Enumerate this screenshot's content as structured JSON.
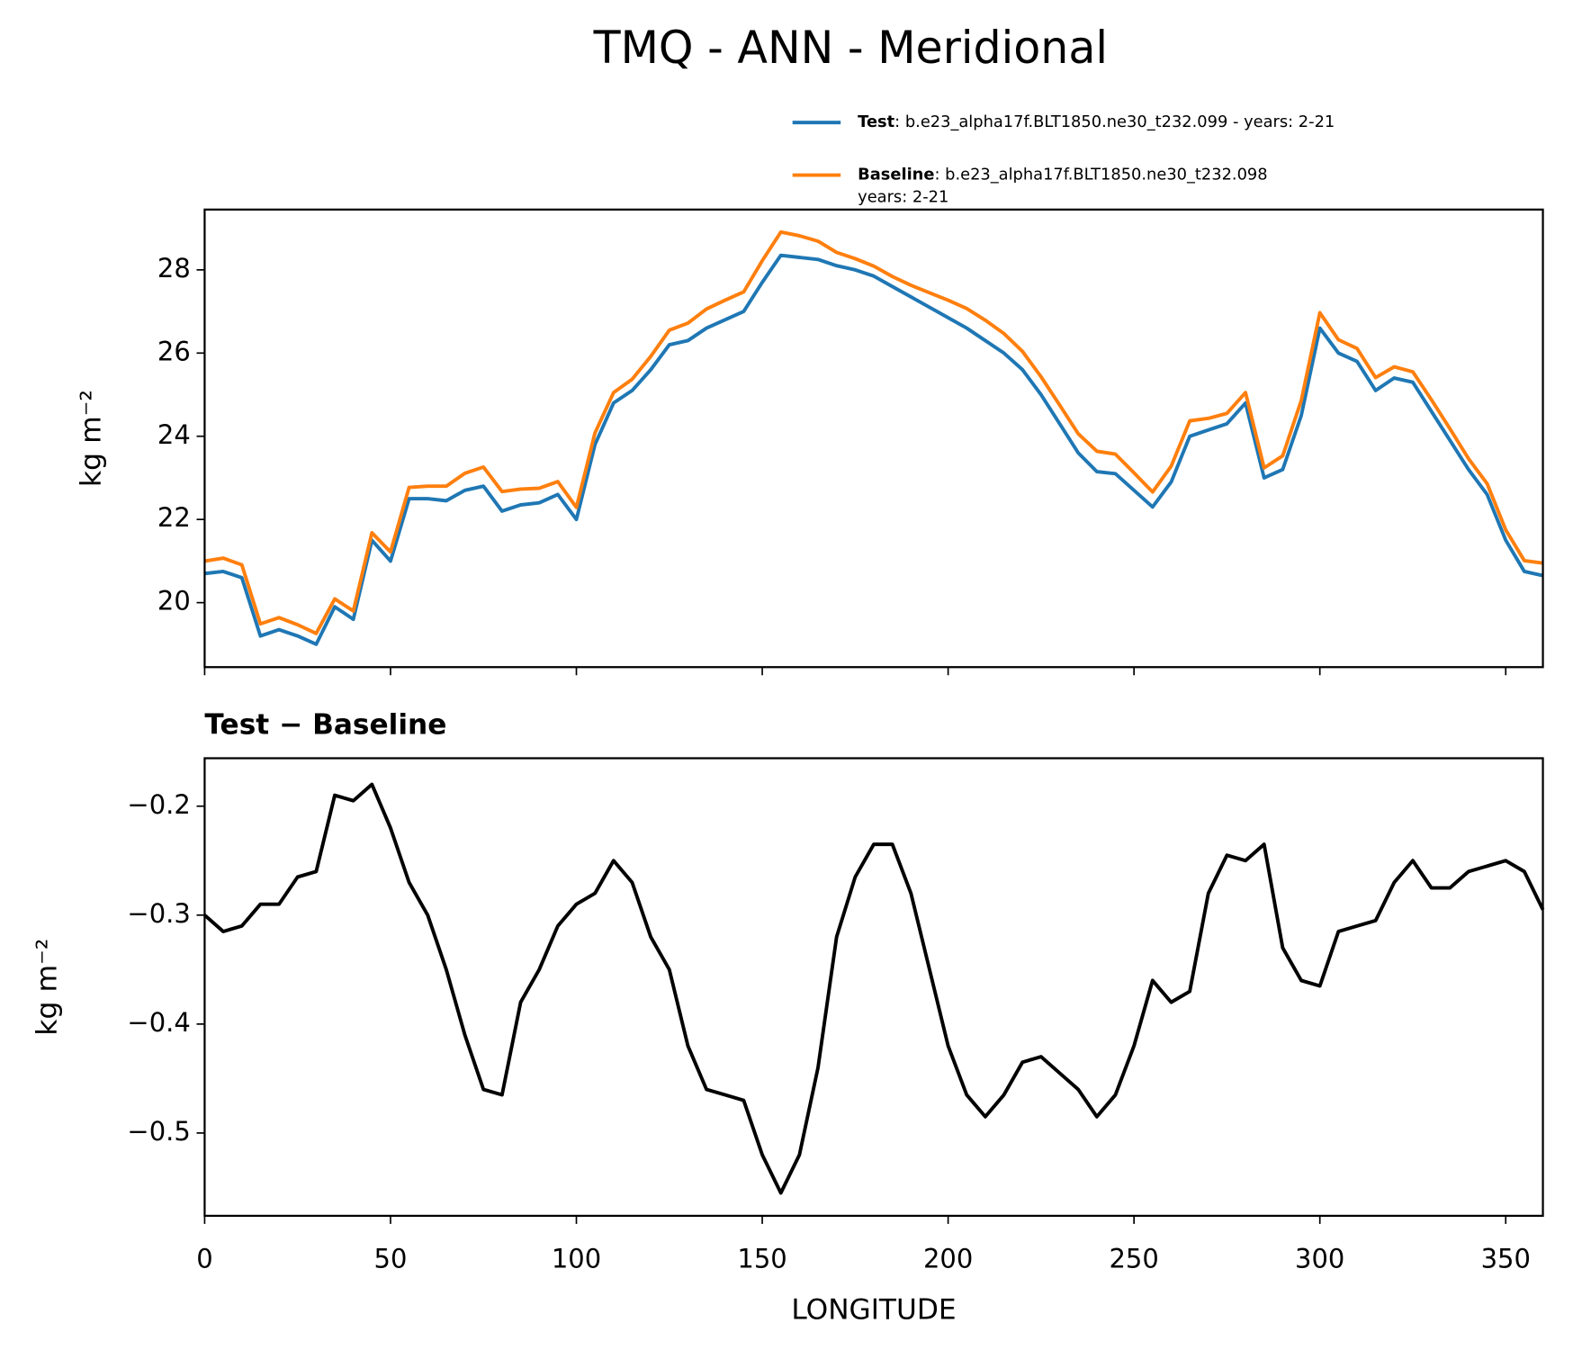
{
  "chart_data": [
    {
      "type": "line",
      "title": "TMQ - ANN - Meridional",
      "ylabel": "kg m⁻²",
      "x": [
        0,
        5,
        10,
        15,
        20,
        25,
        30,
        35,
        40,
        45,
        50,
        55,
        60,
        65,
        70,
        75,
        80,
        85,
        90,
        95,
        100,
        105,
        110,
        115,
        120,
        125,
        130,
        135,
        140,
        145,
        150,
        155,
        160,
        165,
        170,
        175,
        180,
        185,
        190,
        195,
        200,
        205,
        210,
        215,
        220,
        225,
        230,
        235,
        240,
        245,
        250,
        255,
        260,
        265,
        270,
        275,
        280,
        285,
        290,
        295,
        300,
        305,
        310,
        315,
        320,
        325,
        330,
        335,
        340,
        345,
        350,
        355,
        360
      ],
      "series": [
        {
          "name": "Test",
          "description": [
            ": b.e23_alpha17f.BLT1850.ne30_t232.099 - years: 2-21"
          ],
          "color": "#1f77b4",
          "values": [
            20.7,
            20.75,
            20.6,
            19.2,
            19.35,
            19.2,
            19.0,
            19.9,
            19.6,
            21.5,
            21.0,
            22.5,
            22.5,
            22.45,
            22.7,
            22.8,
            22.2,
            22.35,
            22.4,
            22.6,
            22.0,
            23.8,
            24.8,
            25.1,
            25.6,
            26.2,
            26.3,
            26.6,
            26.8,
            27.0,
            27.7,
            28.35,
            28.3,
            28.25,
            28.1,
            28.0,
            27.85,
            27.6,
            27.35,
            27.1,
            26.85,
            26.6,
            26.3,
            26.0,
            25.6,
            25.0,
            24.3,
            23.6,
            23.15,
            23.1,
            22.7,
            22.3,
            22.9,
            24.0,
            24.15,
            24.3,
            24.8,
            23.0,
            23.2,
            24.5,
            26.6,
            26.0,
            25.8,
            25.1,
            25.4,
            25.3,
            24.6,
            23.9,
            23.2,
            22.6,
            21.5,
            20.75,
            20.65
          ]
        },
        {
          "name": "Baseline",
          "description": [
            ": b.e23_alpha17f.BLT1850.ne30_t232.098",
            "years: 2-21"
          ],
          "color": "#ff7f0e",
          "values": [
            21.0,
            21.07,
            20.91,
            19.49,
            19.64,
            19.47,
            19.26,
            20.09,
            19.8,
            21.68,
            21.22,
            22.77,
            22.8,
            22.8,
            23.11,
            23.26,
            22.67,
            22.73,
            22.75,
            22.91,
            22.29,
            24.08,
            25.05,
            25.37,
            25.92,
            26.55,
            26.72,
            27.06,
            27.27,
            27.47,
            28.22,
            28.91,
            28.82,
            28.69,
            28.42,
            28.27,
            28.09,
            27.84,
            27.63,
            27.45,
            27.27,
            27.07,
            26.79,
            26.47,
            26.04,
            25.43,
            24.75,
            24.06,
            23.64,
            23.57,
            23.12,
            22.66,
            23.28,
            24.37,
            24.43,
            24.55,
            25.05,
            23.24,
            23.53,
            24.86,
            26.97,
            26.32,
            26.11,
            25.41,
            25.67,
            25.55,
            24.88,
            24.18,
            23.46,
            22.86,
            21.75,
            21.01,
            20.95
          ]
        }
      ],
      "xlim": [
        0,
        360
      ],
      "xticks": [
        0,
        50,
        100,
        150,
        200,
        250,
        300,
        350
      ],
      "ylim": [
        18.45,
        29.45
      ],
      "yticks": [
        20,
        22,
        24,
        26,
        28
      ]
    },
    {
      "type": "line",
      "subtitle": "Test − Baseline",
      "ylabel": "kg m⁻²",
      "xlabel": "LONGITUDE",
      "x": [
        0,
        5,
        10,
        15,
        20,
        25,
        30,
        35,
        40,
        45,
        50,
        55,
        60,
        65,
        70,
        75,
        80,
        85,
        90,
        95,
        100,
        105,
        110,
        115,
        120,
        125,
        130,
        135,
        140,
        145,
        150,
        155,
        160,
        165,
        170,
        175,
        180,
        185,
        190,
        195,
        200,
        205,
        210,
        215,
        220,
        225,
        230,
        235,
        240,
        245,
        250,
        255,
        260,
        265,
        270,
        275,
        280,
        285,
        290,
        295,
        300,
        305,
        310,
        315,
        320,
        325,
        330,
        335,
        340,
        345,
        350,
        355,
        360
      ],
      "series": [
        {
          "color": "#000000",
          "values": [
            -0.3,
            -0.315,
            -0.31,
            -0.29,
            -0.29,
            -0.265,
            -0.26,
            -0.19,
            -0.195,
            -0.18,
            -0.22,
            -0.27,
            -0.3,
            -0.35,
            -0.41,
            -0.46,
            -0.465,
            -0.38,
            -0.35,
            -0.31,
            -0.29,
            -0.28,
            -0.25,
            -0.27,
            -0.32,
            -0.35,
            -0.42,
            -0.46,
            -0.465,
            -0.47,
            -0.52,
            -0.555,
            -0.52,
            -0.44,
            -0.32,
            -0.265,
            -0.235,
            -0.235,
            -0.28,
            -0.35,
            -0.42,
            -0.465,
            -0.485,
            -0.465,
            -0.435,
            -0.43,
            -0.445,
            -0.46,
            -0.485,
            -0.465,
            -0.42,
            -0.36,
            -0.38,
            -0.37,
            -0.28,
            -0.245,
            -0.25,
            -0.235,
            -0.33,
            -0.36,
            -0.365,
            -0.315,
            -0.31,
            -0.305,
            -0.27,
            -0.25,
            -0.275,
            -0.275,
            -0.26,
            -0.255,
            -0.25,
            -0.26,
            -0.295
          ]
        }
      ],
      "xlim": [
        0,
        360
      ],
      "xticks": [
        0,
        50,
        100,
        150,
        200,
        250,
        300,
        350
      ],
      "ylim": [
        -0.576,
        -0.156
      ],
      "yticks": [
        {
          "value": -0.5,
          "label": "−0.5"
        },
        {
          "value": -0.4,
          "label": "−0.4"
        },
        {
          "value": -0.3,
          "label": "−0.3"
        },
        {
          "value": -0.2,
          "label": "−0.2"
        }
      ]
    }
  ]
}
